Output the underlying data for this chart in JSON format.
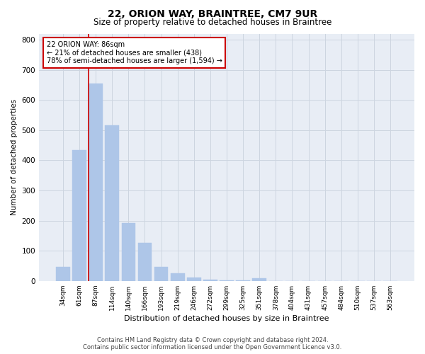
{
  "title": "22, ORION WAY, BRAINTREE, CM7 9UR",
  "subtitle": "Size of property relative to detached houses in Braintree",
  "xlabel": "Distribution of detached houses by size in Braintree",
  "ylabel": "Number of detached properties",
  "categories": [
    "34sqm",
    "61sqm",
    "87sqm",
    "114sqm",
    "140sqm",
    "166sqm",
    "193sqm",
    "219sqm",
    "246sqm",
    "272sqm",
    "299sqm",
    "325sqm",
    "351sqm",
    "378sqm",
    "404sqm",
    "431sqm",
    "457sqm",
    "484sqm",
    "510sqm",
    "537sqm",
    "563sqm"
  ],
  "values": [
    47,
    435,
    655,
    515,
    193,
    127,
    47,
    25,
    11,
    5,
    2,
    1,
    8,
    0,
    0,
    0,
    0,
    0,
    0,
    0,
    0
  ],
  "bar_color": "#aec6e8",
  "bar_edge_color": "#aec6e8",
  "property_line_color": "#cc0000",
  "annotation_text": "22 ORION WAY: 86sqm\n← 21% of detached houses are smaller (438)\n78% of semi-detached houses are larger (1,594) →",
  "annotation_box_color": "#ffffff",
  "annotation_box_edge": "#cc0000",
  "ylim": [
    0,
    820
  ],
  "yticks": [
    0,
    100,
    200,
    300,
    400,
    500,
    600,
    700,
    800
  ],
  "grid_color": "#cdd5e0",
  "bg_color": "#e8edf5",
  "footer_line1": "Contains HM Land Registry data © Crown copyright and database right 2024.",
  "footer_line2": "Contains public sector information licensed under the Open Government Licence v3.0."
}
